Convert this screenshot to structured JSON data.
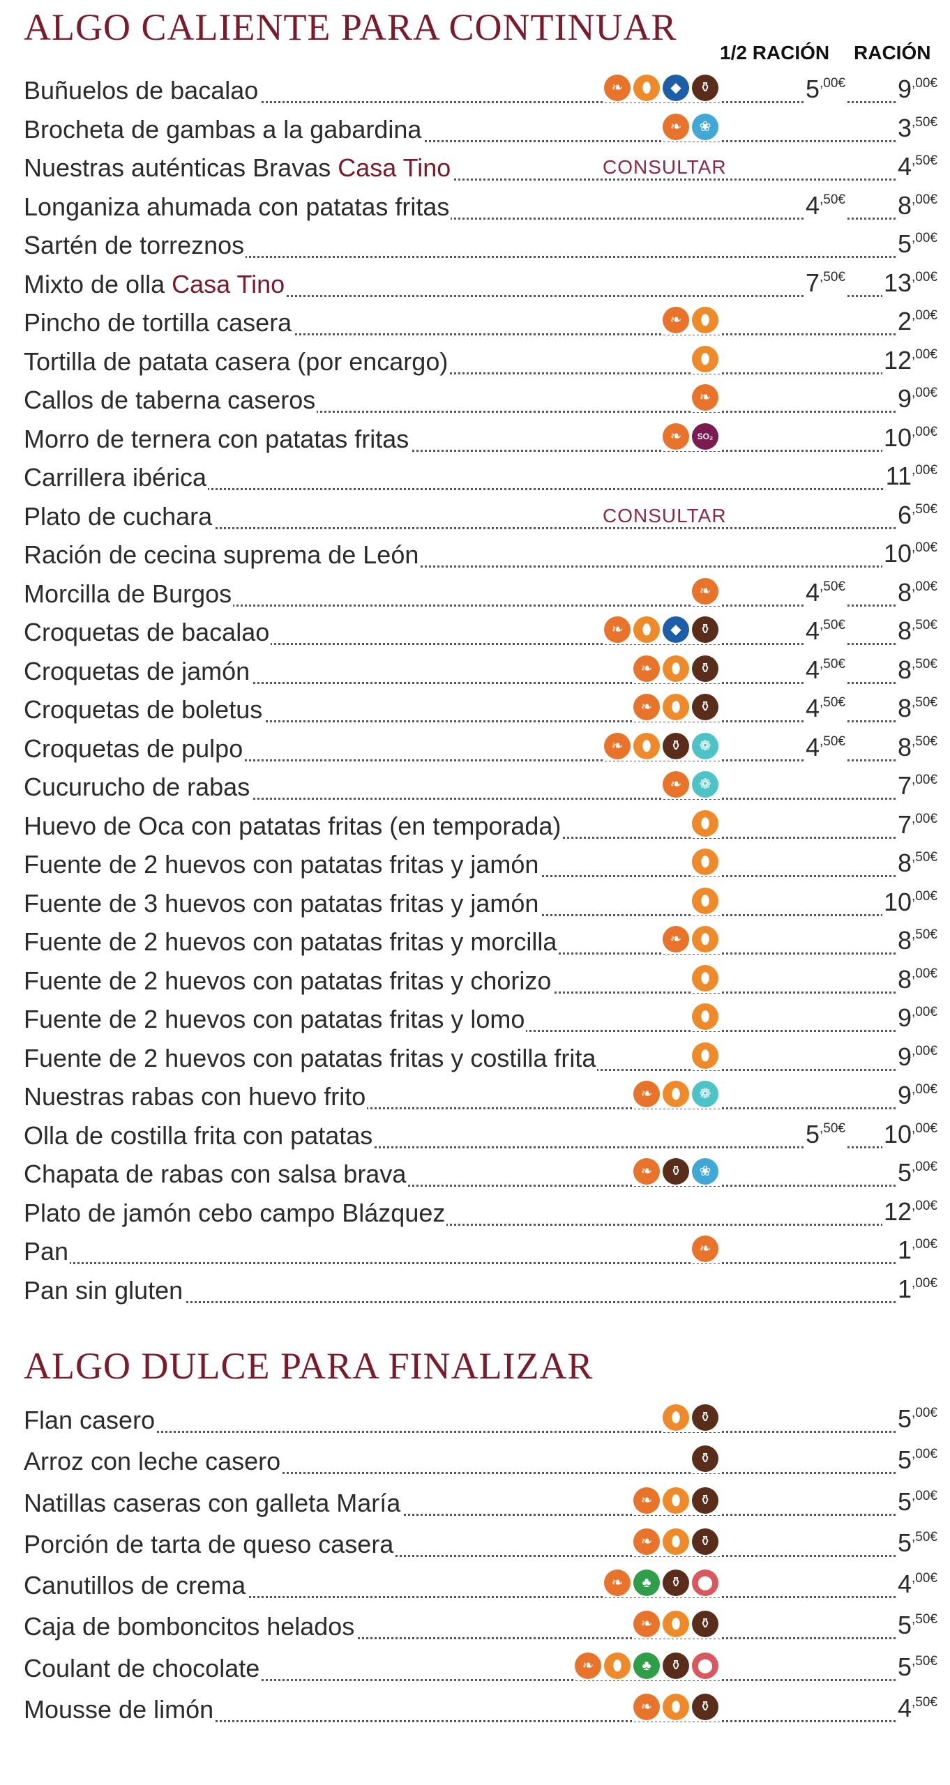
{
  "sections": [
    {
      "title": "ALGO CALIENTE PARA CONTINUAR",
      "col_half": "1/2 RACIÓN",
      "col_full": "RACIÓN",
      "items": [
        {
          "name": "Buñuelos de bacalao",
          "icons": [
            "gluten",
            "egg",
            "fish",
            "milk"
          ],
          "half": [
            "5",
            ",00€"
          ],
          "full": [
            "9",
            ",00€"
          ]
        },
        {
          "name": "Brocheta de gambas a la gabardina",
          "icons": [
            "gluten",
            "crustacean"
          ],
          "full": [
            "3",
            ",50€"
          ]
        },
        {
          "name": "Nuestras auténticas Bravas ",
          "hl": "Casa Tino",
          "consult": "CONSULTAR",
          "full": [
            "4",
            ",50€"
          ]
        },
        {
          "name": "Longaniza ahumada con patatas fritas",
          "half": [
            "4",
            ",50€"
          ],
          "full": [
            "8",
            ",00€"
          ]
        },
        {
          "name": "Sartén de torreznos",
          "full": [
            "5",
            ",00€"
          ]
        },
        {
          "name": "Mixto de olla ",
          "hl": "Casa Tino",
          "half": [
            "7",
            ",50€"
          ],
          "full": [
            "13",
            ",00€"
          ]
        },
        {
          "name": "Pincho de tortilla casera",
          "icons": [
            "gluten",
            "egg"
          ],
          "full": [
            "2",
            ",00€"
          ]
        },
        {
          "name": "Tortilla de patata casera (por encargo)",
          "icons": [
            "egg"
          ],
          "full": [
            "12",
            ",00€"
          ]
        },
        {
          "name": "Callos de taberna caseros",
          "icons": [
            "gluten"
          ],
          "full": [
            "9",
            ",00€"
          ]
        },
        {
          "name": "Morro de ternera con patatas fritas",
          "icons": [
            "gluten",
            "sulphites"
          ],
          "full": [
            "10",
            ",00€"
          ]
        },
        {
          "name": "Carrillera ibérica",
          "full": [
            "11",
            ",00€"
          ]
        },
        {
          "name": "Plato de cuchara",
          "consult": "CONSULTAR",
          "full": [
            "6",
            ",50€"
          ]
        },
        {
          "name": "Ración de cecina suprema de León",
          "full": [
            "10",
            ",00€"
          ]
        },
        {
          "name": "Morcilla de Burgos",
          "icons": [
            "gluten"
          ],
          "half": [
            "4",
            ",50€"
          ],
          "full": [
            "8",
            ",00€"
          ]
        },
        {
          "name": "Croquetas de bacalao",
          "icons": [
            "gluten",
            "egg",
            "fish",
            "milk"
          ],
          "half": [
            "4",
            ",50€"
          ],
          "full": [
            "8",
            ",50€"
          ]
        },
        {
          "name": "Croquetas de jamón",
          "icons": [
            "gluten",
            "egg",
            "milk"
          ],
          "half": [
            "4",
            ",50€"
          ],
          "full": [
            "8",
            ",50€"
          ]
        },
        {
          "name": "Croquetas de boletus",
          "icons": [
            "gluten",
            "egg",
            "milk"
          ],
          "half": [
            "4",
            ",50€"
          ],
          "full": [
            "8",
            ",50€"
          ]
        },
        {
          "name": "Croquetas de pulpo",
          "icons": [
            "gluten",
            "egg",
            "milk",
            "mollusc"
          ],
          "half": [
            "4",
            ",50€"
          ],
          "full": [
            "8",
            ",50€"
          ]
        },
        {
          "name": "Cucurucho de rabas",
          "icons": [
            "gluten",
            "mollusc"
          ],
          "full": [
            "7",
            ",00€"
          ]
        },
        {
          "name": "Huevo de Oca con patatas fritas (en temporada)",
          "icons": [
            "egg"
          ],
          "full": [
            "7",
            ",00€"
          ]
        },
        {
          "name": "Fuente de 2 huevos con patatas fritas y jamón",
          "icons": [
            "egg"
          ],
          "full": [
            "8",
            ",50€"
          ]
        },
        {
          "name": "Fuente de 3 huevos con patatas fritas y jamón",
          "icons": [
            "egg"
          ],
          "full": [
            "10",
            ",00€"
          ]
        },
        {
          "name": "Fuente de 2 huevos con patatas fritas y morcilla",
          "icons": [
            "gluten",
            "egg"
          ],
          "full": [
            "8",
            ",50€"
          ]
        },
        {
          "name": "Fuente de 2 huevos con patatas fritas y chorizo",
          "icons": [
            "egg"
          ],
          "full": [
            "8",
            ",00€"
          ]
        },
        {
          "name": "Fuente de 2 huevos con patatas fritas y lomo",
          "icons": [
            "egg"
          ],
          "full": [
            "9",
            ",00€"
          ]
        },
        {
          "name": "Fuente de 2 huevos con patatas fritas y costilla frita",
          "icons": [
            "egg"
          ],
          "full": [
            "9",
            ",00€"
          ]
        },
        {
          "name": "Nuestras rabas con huevo frito",
          "icons": [
            "gluten",
            "egg",
            "mollusc"
          ],
          "full": [
            "9",
            ",00€"
          ]
        },
        {
          "name": "Olla de costilla frita con patatas",
          "half": [
            "5",
            ",50€"
          ],
          "full": [
            "10",
            ",00€"
          ]
        },
        {
          "name": "Chapata de rabas con salsa brava",
          "icons": [
            "gluten",
            "milk",
            "crustacean"
          ],
          "full": [
            "5",
            ",00€"
          ]
        },
        {
          "name": "Plato de jamón cebo campo Blázquez",
          "full": [
            "12",
            ",00€"
          ]
        },
        {
          "name": "Pan",
          "icons": [
            "gluten"
          ],
          "full": [
            "1",
            ",00€"
          ]
        },
        {
          "name": "Pan sin gluten",
          "full": [
            "1",
            ",00€"
          ]
        }
      ]
    },
    {
      "title": "ALGO DULCE PARA FINALIZAR",
      "items": [
        {
          "name": "Flan casero",
          "icons": [
            "egg",
            "milk"
          ],
          "full": [
            "5",
            ",00€"
          ]
        },
        {
          "name": "Arroz con leche casero",
          "icons": [
            "milk"
          ],
          "full": [
            "5",
            ",00€"
          ]
        },
        {
          "name": "Natillas caseras con galleta María",
          "icons": [
            "gluten",
            "egg",
            "milk"
          ],
          "full": [
            "5",
            ",00€"
          ]
        },
        {
          "name": "Porción de tarta de queso casera",
          "icons": [
            "gluten",
            "egg",
            "milk"
          ],
          "full": [
            "5",
            ",50€"
          ]
        },
        {
          "name": "Canutillos de crema",
          "icons": [
            "gluten",
            "nuts",
            "milk",
            "soy"
          ],
          "full": [
            "4",
            ",00€"
          ]
        },
        {
          "name": "Caja de bomboncitos helados",
          "icons": [
            "gluten",
            "egg",
            "milk"
          ],
          "full": [
            "5",
            ",50€"
          ]
        },
        {
          "name": "Coulant de chocolate",
          "icons": [
            "gluten",
            "egg",
            "nuts",
            "milk",
            "soy"
          ],
          "full": [
            "5",
            ",50€"
          ]
        },
        {
          "name": "Mousse de limón",
          "icons": [
            "gluten",
            "egg",
            "milk"
          ],
          "full": [
            "4",
            ",50€"
          ]
        }
      ]
    }
  ],
  "icon_glyphs": {
    "gluten": "❧",
    "egg": "⬮",
    "fish": "◆",
    "milk": "⚱",
    "crustacean": "❀",
    "mollusc": "❁",
    "sulphites": "SO₂",
    "nuts": "♣",
    "soy": "⬤"
  },
  "icon_names": {
    "gluten": "gluten-icon",
    "egg": "egg-icon",
    "fish": "fish-icon",
    "milk": "milk-icon",
    "crustacean": "crustacean-icon",
    "mollusc": "mollusc-icon",
    "sulphites": "sulphites-icon",
    "nuts": "nuts-icon",
    "soy": "soy-icon"
  },
  "icon_classes": {
    "gluten": "ic-gluten",
    "egg": "ic-egg",
    "fish": "ic-fish",
    "milk": "ic-milk",
    "crustacean": "ic-crust",
    "mollusc": "ic-moll",
    "sulphites": "ic-sulph",
    "nuts": "ic-nuts",
    "soy": "ic-soy"
  },
  "colors": {
    "title": "#7a1b2c",
    "highlight": "#7a1b2c",
    "consult": "#8a2a45"
  }
}
